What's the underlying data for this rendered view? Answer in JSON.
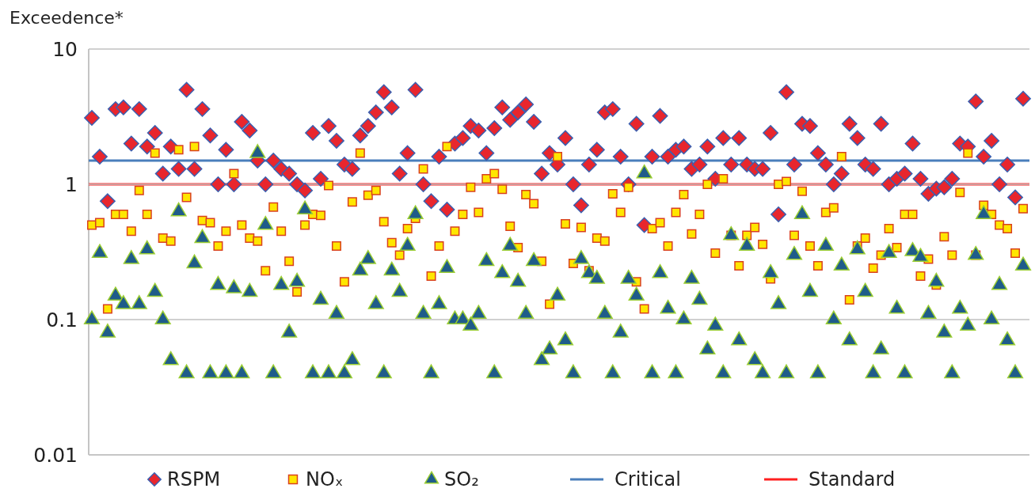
{
  "chart_data": {
    "type": "scatter",
    "ylabel": "Exceedence*",
    "categories": [
      null,
      null,
      null,
      null,
      null,
      null,
      null,
      null,
      null,
      null,
      null,
      null,
      null,
      null,
      null,
      null,
      null,
      null,
      null,
      null,
      null,
      null,
      null,
      null,
      null,
      null,
      null,
      null,
      null,
      null,
      null,
      null,
      null,
      null,
      null,
      null,
      null,
      null,
      null,
      null,
      null,
      null,
      null,
      null,
      null,
      null,
      null,
      null,
      null,
      null,
      null,
      null,
      null,
      null,
      null,
      null,
      null,
      null,
      null,
      null,
      null,
      null,
      null,
      null,
      null,
      null,
      null,
      null,
      null,
      null,
      null,
      null,
      null,
      null,
      null,
      null,
      null,
      null,
      null,
      null,
      null,
      null,
      null,
      null,
      null,
      null,
      null,
      null,
      null,
      null,
      null,
      null,
      null,
      null,
      null,
      null,
      null,
      null,
      null,
      null,
      null,
      null,
      null,
      null,
      null,
      null,
      null,
      null,
      null,
      null,
      null,
      null,
      null,
      null,
      null,
      null,
      null,
      null,
      null
    ],
    "series": [
      {
        "name": "RSPM",
        "color": "#e8262d",
        "marker": "diamond",
        "values": [
          3.1,
          1.6,
          0.75,
          3.6,
          3.7,
          2.0,
          3.6,
          1.9,
          2.4,
          1.2,
          1.9,
          1.3,
          5.0,
          1.3,
          3.6,
          2.3,
          1.0,
          1.8,
          1.0,
          2.9,
          2.5,
          1.5,
          1.0,
          1.5,
          1.3,
          1.2,
          1.0,
          0.9,
          2.4,
          1.1,
          2.7,
          2.1,
          1.4,
          1.3,
          2.3,
          2.7,
          3.4,
          4.8,
          3.7,
          1.2,
          1.7,
          5.0,
          1.0,
          0.75,
          1.6,
          0.65,
          2.0,
          2.2,
          2.7,
          2.5,
          1.7,
          2.6,
          3.7,
          3.0,
          3.4,
          3.9,
          2.9,
          1.2,
          1.7,
          1.4,
          2.2,
          1.0,
          0.7,
          1.4,
          1.8,
          3.4,
          3.6,
          1.6,
          1.0,
          2.8,
          0.5,
          1.6,
          3.2,
          1.6,
          1.8,
          1.9,
          1.3,
          1.4,
          1.9,
          1.1,
          2.2,
          1.4,
          2.2,
          1.4,
          1.3,
          1.3,
          2.4,
          0.6,
          4.8,
          1.4,
          2.8,
          2.7,
          1.7,
          1.4,
          1.0,
          1.2,
          2.8,
          2.2,
          1.4,
          1.3,
          2.8,
          1.0,
          1.1,
          1.2,
          2.0,
          1.1,
          0.85,
          0.93,
          0.95,
          1.1,
          2.0,
          1.9,
          4.1,
          1.6,
          2.1,
          1.0,
          1.4,
          0.8,
          4.3
        ]
      },
      {
        "name": "NOₓ",
        "color": "#ffe600",
        "marker": "square",
        "values": [
          0.5,
          0.52,
          0.12,
          0.6,
          0.6,
          0.45,
          0.9,
          0.6,
          1.7,
          0.4,
          0.38,
          1.8,
          0.8,
          1.9,
          0.54,
          0.52,
          0.35,
          0.45,
          1.2,
          0.5,
          0.4,
          0.38,
          0.23,
          0.68,
          0.45,
          0.27,
          0.16,
          0.5,
          0.6,
          0.59,
          0.98,
          0.35,
          0.19,
          0.74,
          1.7,
          0.83,
          0.9,
          0.53,
          0.37,
          0.3,
          0.47,
          0.56,
          1.3,
          0.21,
          0.35,
          1.9,
          0.45,
          0.6,
          0.95,
          0.62,
          1.1,
          1.2,
          0.92,
          0.49,
          0.34,
          0.84,
          0.72,
          0.27,
          0.13,
          1.6,
          0.51,
          0.26,
          0.48,
          0.23,
          0.4,
          0.38,
          0.85,
          0.62,
          0.95,
          0.19,
          0.12,
          0.47,
          0.52,
          0.35,
          0.62,
          0.84,
          0.43,
          0.6,
          1.0,
          0.31,
          1.1,
          0.42,
          0.25,
          0.42,
          0.48,
          0.36,
          0.2,
          1.0,
          1.05,
          0.42,
          0.89,
          0.35,
          0.25,
          0.62,
          0.67,
          1.6,
          0.14,
          0.35,
          0.4,
          0.24,
          0.3,
          0.47,
          0.34,
          0.6,
          0.6,
          0.21,
          0.28,
          0.18,
          0.41,
          0.3,
          0.87,
          1.7,
          0.3,
          0.7,
          0.6,
          0.5,
          0.47,
          0.31,
          0.66
        ]
      },
      {
        "name": "SO₂",
        "color": "#1f5c8a",
        "marker": "triangle",
        "values": [
          0.1,
          0.31,
          0.08,
          0.15,
          0.13,
          0.28,
          0.13,
          0.33,
          0.16,
          0.1,
          0.05,
          0.63,
          0.04,
          0.26,
          0.4,
          0.04,
          0.18,
          0.04,
          0.17,
          0.04,
          0.16,
          1.7,
          0.5,
          0.04,
          0.18,
          0.08,
          0.19,
          0.65,
          0.04,
          0.14,
          0.04,
          0.11,
          0.04,
          0.05,
          0.23,
          0.28,
          0.13,
          0.04,
          0.23,
          0.16,
          0.35,
          0.6,
          0.11,
          0.04,
          0.13,
          0.24,
          0.1,
          0.1,
          0.09,
          0.11,
          0.27,
          0.04,
          0.22,
          0.35,
          0.19,
          0.11,
          0.27,
          0.05,
          0.06,
          0.15,
          0.07,
          0.04,
          0.28,
          0.22,
          0.2,
          0.11,
          0.04,
          0.08,
          0.2,
          0.15,
          1.2,
          0.04,
          0.22,
          0.12,
          0.04,
          0.1,
          0.2,
          0.14,
          0.06,
          0.09,
          0.04,
          0.42,
          0.07,
          0.35,
          0.05,
          0.04,
          0.22,
          0.13,
          0.04,
          0.3,
          0.6,
          0.16,
          0.04,
          0.35,
          0.1,
          0.25,
          0.07,
          0.33,
          0.16,
          0.04,
          0.06,
          0.31,
          0.12,
          0.04,
          0.32,
          0.29,
          0.11,
          0.19,
          0.08,
          0.04,
          0.12,
          0.09,
          0.3,
          0.6,
          0.1,
          0.18,
          0.07,
          0.04,
          0.25
        ]
      }
    ],
    "ref_lines": [
      {
        "axis": "y",
        "value": 1.5,
        "label": "Critical",
        "color": "#4a7ebb"
      },
      {
        "axis": "y",
        "value": 1,
        "label": "Standard",
        "color": "#ff2020"
      }
    ],
    "log": true,
    "ylim": [
      0.01,
      10
    ],
    "yticks": [
      0.01,
      0.1,
      1,
      10
    ],
    "grid": "y",
    "legend": "bottom",
    "tick_labels": "y"
  }
}
